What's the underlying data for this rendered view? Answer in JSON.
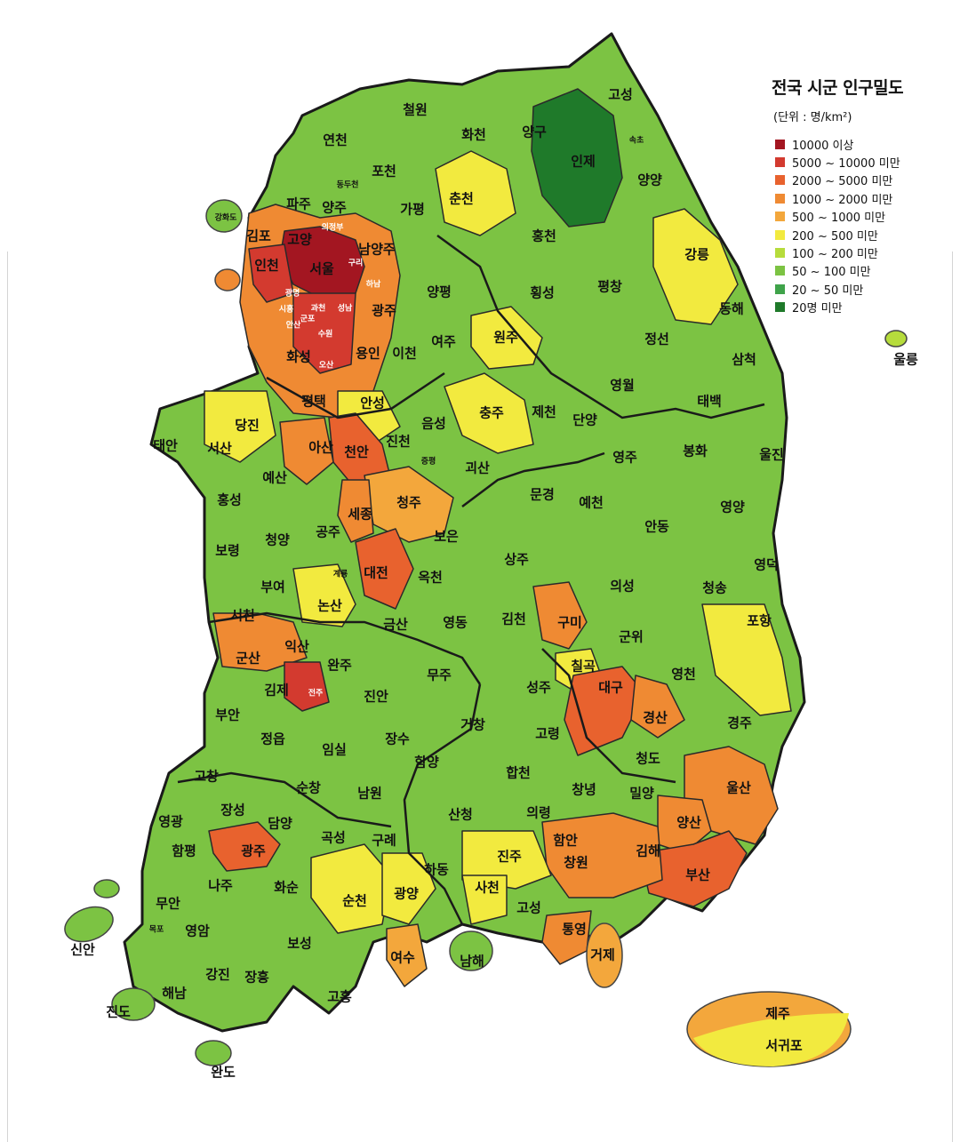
{
  "legend": {
    "title": "전국 시군 인구밀도",
    "unit": "(단위 : 명/km²)",
    "items": [
      {
        "label": "10000 이상",
        "color": "#a31621"
      },
      {
        "label": "5000 ~ 10000 미만",
        "color": "#d33a2f"
      },
      {
        "label": "2000 ~ 5000 미만",
        "color": "#e8622e"
      },
      {
        "label": "1000 ~ 2000 미만",
        "color": "#ef8a33"
      },
      {
        "label": "500 ~ 1000 미만",
        "color": "#f3a73c"
      },
      {
        "label": "200 ~ 500 미만",
        "color": "#f2ea3f"
      },
      {
        "label": "100 ~ 200 미만",
        "color": "#b6dc3c"
      },
      {
        "label": "50 ~ 100 미만",
        "color": "#7cc343"
      },
      {
        "label": "20 ~ 50 미만",
        "color": "#3fa34a"
      },
      {
        "label": "20명 미만",
        "color": "#1f7a2a"
      }
    ]
  },
  "regions": [
    {
      "name": "고성",
      "class": 8
    },
    {
      "name": "속초",
      "class": 3
    },
    {
      "name": "인제",
      "class": 9
    },
    {
      "name": "양양",
      "class": 8
    },
    {
      "name": "양구",
      "class": 8
    },
    {
      "name": "화천",
      "class": 8
    },
    {
      "name": "철원",
      "class": 7
    },
    {
      "name": "연천",
      "class": 7
    },
    {
      "name": "포천",
      "class": 6
    },
    {
      "name": "동두천",
      "class": 4
    },
    {
      "name": "파주",
      "class": 3
    },
    {
      "name": "양주",
      "class": 3
    },
    {
      "name": "가평",
      "class": 7
    },
    {
      "name": "춘천",
      "class": 5
    },
    {
      "name": "홍천",
      "class": 8
    },
    {
      "name": "강화도",
      "class": 7
    },
    {
      "name": "김포",
      "class": 2
    },
    {
      "name": "고양",
      "class": 2
    },
    {
      "name": "의정부",
      "class": 1
    },
    {
      "name": "남양주",
      "class": 2
    },
    {
      "name": "구리",
      "class": 1
    },
    {
      "name": "서울",
      "class": 0
    },
    {
      "name": "인천",
      "class": 1
    },
    {
      "name": "하남",
      "class": 1
    },
    {
      "name": "광명",
      "class": 0
    },
    {
      "name": "과천",
      "class": 1
    },
    {
      "name": "성남",
      "class": 0
    },
    {
      "name": "시흥",
      "class": 1
    },
    {
      "name": "안산",
      "class": 1
    },
    {
      "name": "군포",
      "class": 0
    },
    {
      "name": "수원",
      "class": 0
    },
    {
      "name": "오산",
      "class": 1
    },
    {
      "name": "광주",
      "class": 3
    },
    {
      "name": "양평",
      "class": 6
    },
    {
      "name": "여주",
      "class": 6
    },
    {
      "name": "화성",
      "class": 3
    },
    {
      "name": "용인",
      "class": 2
    },
    {
      "name": "이천",
      "class": 5
    },
    {
      "name": "평택",
      "class": 2
    },
    {
      "name": "안성",
      "class": 5
    },
    {
      "name": "강릉",
      "class": 5
    },
    {
      "name": "횡성",
      "class": 8
    },
    {
      "name": "평창",
      "class": 8
    },
    {
      "name": "동해",
      "class": 3
    },
    {
      "name": "원주",
      "class": 5
    },
    {
      "name": "정선",
      "class": 8
    },
    {
      "name": "삼척",
      "class": 7
    },
    {
      "name": "영월",
      "class": 8
    },
    {
      "name": "태백",
      "class": 6
    },
    {
      "name": "울릉",
      "class": 6
    },
    {
      "name": "당진",
      "class": 5
    },
    {
      "name": "태안",
      "class": 6
    },
    {
      "name": "서산",
      "class": 5
    },
    {
      "name": "아산",
      "class": 3
    },
    {
      "name": "천안",
      "class": 2
    },
    {
      "name": "진천",
      "class": 6
    },
    {
      "name": "음성",
      "class": 6
    },
    {
      "name": "충주",
      "class": 5
    },
    {
      "name": "제천",
      "class": 6
    },
    {
      "name": "단양",
      "class": 8
    },
    {
      "name": "예산",
      "class": 6
    },
    {
      "name": "증평",
      "class": 5
    },
    {
      "name": "괴산",
      "class": 7
    },
    {
      "name": "홍성",
      "class": 5
    },
    {
      "name": "세종",
      "class": 3
    },
    {
      "name": "청주",
      "class": 4
    },
    {
      "name": "공주",
      "class": 6
    },
    {
      "name": "청양",
      "class": 7
    },
    {
      "name": "보령",
      "class": 6
    },
    {
      "name": "대전",
      "class": 2
    },
    {
      "name": "보은",
      "class": 7
    },
    {
      "name": "옥천",
      "class": 7
    },
    {
      "name": "부여",
      "class": 6
    },
    {
      "name": "계룡",
      "class": 4
    },
    {
      "name": "논산",
      "class": 5
    },
    {
      "name": "서천",
      "class": 6
    },
    {
      "name": "금산",
      "class": 7
    },
    {
      "name": "영동",
      "class": 7
    },
    {
      "name": "영주",
      "class": 6
    },
    {
      "name": "봉화",
      "class": 8
    },
    {
      "name": "울진",
      "class": 7
    },
    {
      "name": "문경",
      "class": 7
    },
    {
      "name": "예천",
      "class": 7
    },
    {
      "name": "영양",
      "class": 8
    },
    {
      "name": "안동",
      "class": 6
    },
    {
      "name": "상주",
      "class": 7
    },
    {
      "name": "영덕",
      "class": 7
    },
    {
      "name": "의성",
      "class": 8
    },
    {
      "name": "청송",
      "class": 8
    },
    {
      "name": "구미",
      "class": 3
    },
    {
      "name": "군위",
      "class": 8
    },
    {
      "name": "포항",
      "class": 5
    },
    {
      "name": "김천",
      "class": 6
    },
    {
      "name": "칠곡",
      "class": 5
    },
    {
      "name": "군산",
      "class": 3
    },
    {
      "name": "익산",
      "class": 3
    },
    {
      "name": "완주",
      "class": 6
    },
    {
      "name": "김제",
      "class": 6
    },
    {
      "name": "전주",
      "class": 1
    },
    {
      "name": "진안",
      "class": 8
    },
    {
      "name": "무주",
      "class": 8
    },
    {
      "name": "성주",
      "class": 6
    },
    {
      "name": "영천",
      "class": 6
    },
    {
      "name": "대구",
      "class": 2
    },
    {
      "name": "경산",
      "class": 3
    },
    {
      "name": "경주",
      "class": 6
    },
    {
      "name": "부안",
      "class": 6
    },
    {
      "name": "정읍",
      "class": 6
    },
    {
      "name": "임실",
      "class": 8
    },
    {
      "name": "장수",
      "class": 8
    },
    {
      "name": "거창",
      "class": 7
    },
    {
      "name": "고령",
      "class": 6
    },
    {
      "name": "청도",
      "class": 7
    },
    {
      "name": "함양",
      "class": 7
    },
    {
      "name": "합천",
      "class": 8
    },
    {
      "name": "고창",
      "class": 7
    },
    {
      "name": "순창",
      "class": 7
    },
    {
      "name": "남원",
      "class": 6
    },
    {
      "name": "창녕",
      "class": 6
    },
    {
      "name": "밀양",
      "class": 6
    },
    {
      "name": "울산",
      "class": 3
    },
    {
      "name": "영광",
      "class": 6
    },
    {
      "name": "장성",
      "class": 7
    },
    {
      "name": "담양",
      "class": 6
    },
    {
      "name": "산청",
      "class": 8
    },
    {
      "name": "의령",
      "class": 7
    },
    {
      "name": "양산",
      "class": 3
    },
    {
      "name": "함평",
      "class": 7
    },
    {
      "name": "광주",
      "class": 2
    },
    {
      "name": "곡성",
      "class": 7
    },
    {
      "name": "구례",
      "class": 7
    },
    {
      "name": "진주",
      "class": 5
    },
    {
      "name": "함안",
      "class": 6
    },
    {
      "name": "창원",
      "class": 3
    },
    {
      "name": "김해",
      "class": 3
    },
    {
      "name": "부산",
      "class": 2
    },
    {
      "name": "나주",
      "class": 6
    },
    {
      "name": "화순",
      "class": 7
    },
    {
      "name": "순천",
      "class": 5
    },
    {
      "name": "광양",
      "class": 5
    },
    {
      "name": "하동",
      "class": 7
    },
    {
      "name": "사천",
      "class": 5
    },
    {
      "name": "고성",
      "class": 6
    },
    {
      "name": "무안",
      "class": 6
    },
    {
      "name": "목포",
      "class": 2
    },
    {
      "name": "통영",
      "class": 3
    },
    {
      "name": "영암",
      "class": 7
    },
    {
      "name": "신안",
      "class": 7
    },
    {
      "name": "거제",
      "class": 4
    },
    {
      "name": "여수",
      "class": 4
    },
    {
      "name": "남해",
      "class": 7
    },
    {
      "name": "보성",
      "class": 7
    },
    {
      "name": "해남",
      "class": 7
    },
    {
      "name": "강진",
      "class": 7
    },
    {
      "name": "장흥",
      "class": 7
    },
    {
      "name": "진도",
      "class": 7
    },
    {
      "name": "고흥",
      "class": 7
    },
    {
      "name": "완도",
      "class": 7
    },
    {
      "name": "제주",
      "class": 4
    },
    {
      "name": "서귀포",
      "class": 5
    }
  ]
}
